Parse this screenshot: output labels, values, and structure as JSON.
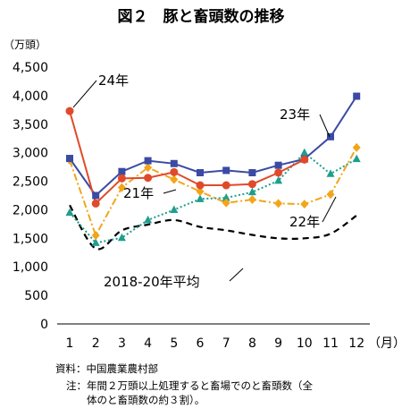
{
  "title": "図２　豚と畜頭数の推移",
  "chart_data": {
    "type": "line",
    "y_unit": "（万頭）",
    "x_unit": "（月）",
    "categories": [
      "1",
      "2",
      "3",
      "4",
      "5",
      "6",
      "7",
      "8",
      "9",
      "10",
      "11",
      "12"
    ],
    "ylim": [
      0,
      4500
    ],
    "yticks": [
      "0",
      "500",
      "1,000",
      "1,500",
      "2,000",
      "2,500",
      "3,000",
      "3,500",
      "4,000",
      "4,500"
    ],
    "grid": false,
    "series": [
      {
        "name": "23年",
        "color": "#3b4aa3",
        "style": "solid",
        "marker": "square",
        "values": [
          2900,
          2250,
          2670,
          2860,
          2810,
          2650,
          2690,
          2650,
          2780,
          2890,
          3280,
          3990
        ]
      },
      {
        "name": "24年",
        "color": "#e04a2a",
        "style": "solid",
        "marker": "circle",
        "values": [
          3730,
          2110,
          2550,
          2560,
          2660,
          2430,
          2430,
          2450,
          2650,
          2880,
          null,
          null
        ]
      },
      {
        "name": "22年",
        "color": "#f2a51a",
        "style": "dashdot",
        "marker": "diamond",
        "values": [
          2870,
          1550,
          2390,
          2740,
          2530,
          2320,
          2120,
          2180,
          2110,
          2100,
          2270,
          3090
        ]
      },
      {
        "name": "21年",
        "color": "#1f9e8e",
        "style": "dotted",
        "marker": "triangle",
        "values": [
          1950,
          1420,
          1510,
          1820,
          2000,
          2190,
          2210,
          2310,
          2510,
          3000,
          2630,
          2890
        ]
      },
      {
        "name": "2018-20年平均",
        "color": "#000000",
        "style": "dashed",
        "marker": "none",
        "values": [
          2080,
          1320,
          1640,
          1740,
          1820,
          1700,
          1640,
          1560,
          1500,
          1500,
          1580,
          1900
        ]
      }
    ]
  },
  "source": "資料：中国農業農村部",
  "note": "注：年間２万頭以上処理すると畜場でのと畜頭数（全\n　　体のと畜頭数の約３割）。"
}
